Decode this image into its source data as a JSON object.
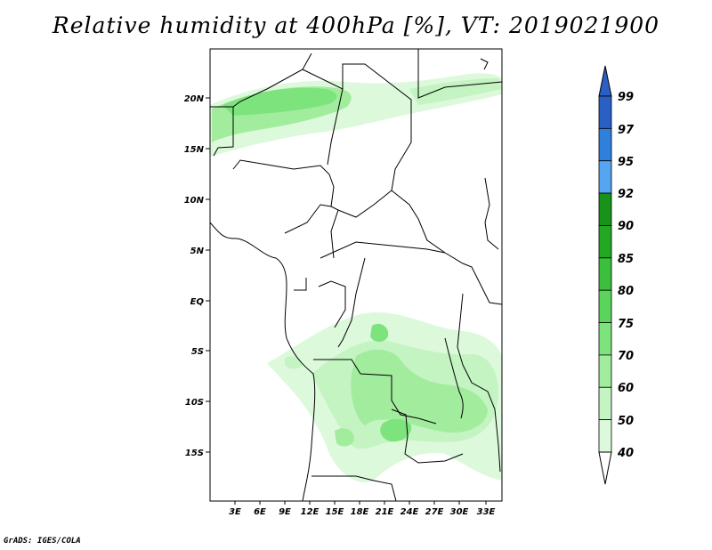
{
  "title": "Relative humidity at 400hPa [%], VT: 2019021900",
  "credit": "GrADS: IGES/COLA",
  "map": {
    "lat_labels": [
      "20N",
      "15N",
      "10N",
      "5N",
      "EQ",
      "5S",
      "10S",
      "15S"
    ],
    "lon_labels": [
      "3E",
      "6E",
      "9E",
      "12E",
      "15E",
      "18E",
      "21E",
      "24E",
      "27E",
      "30E",
      "33E"
    ]
  },
  "colorbar": {
    "levels": [
      "99",
      "97",
      "95",
      "92",
      "90",
      "85",
      "80",
      "75",
      "70",
      "60",
      "50",
      "40"
    ],
    "colors": [
      "#2a5fc4",
      "#2f7fdc",
      "#56a5f0",
      "#189218",
      "#23a823",
      "#3cbf3c",
      "#5ad45a",
      "#7de37d",
      "#a2ec9e",
      "#c4f4c2",
      "#ddf9dc",
      "#f0fdf0"
    ]
  }
}
